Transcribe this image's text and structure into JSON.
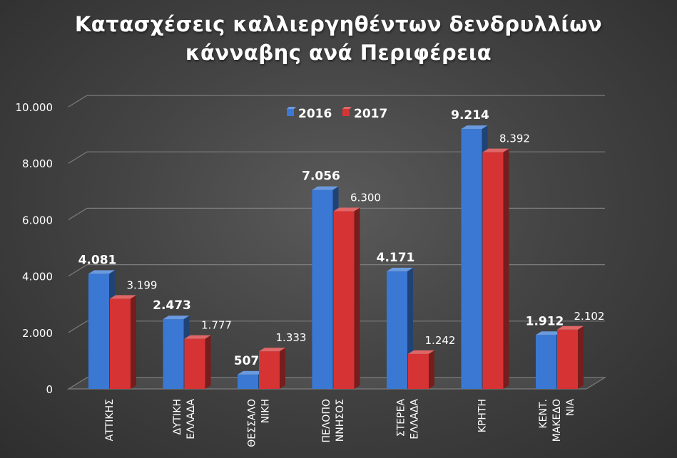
{
  "chart_data": {
    "type": "bar",
    "title": [
      "Κατασχέσεις καλλιεργηθέντων δενδρυλλίων",
      "κάνναβης ανά Περιφέρεια"
    ],
    "categories": [
      [
        "ΑΤΤΙΚΗΣ"
      ],
      [
        "ΔΥΤΙΚΗ",
        "ΕΛΛΑΔΑ"
      ],
      [
        "ΘΕΣΣΑΛΟ",
        "ΝΙΚΗ"
      ],
      [
        "ΠΕΛΟΠΟ",
        "ΝΝΗΣΟΣ"
      ],
      [
        "ΣΤΕΡΕΑ",
        "ΕΛΛΑΔΑ"
      ],
      [
        "ΚΡΗΤΗ"
      ],
      [
        "ΚΕΝΤ.",
        "ΜΑΚΕΔΟ",
        "ΝΙΑ"
      ]
    ],
    "series": [
      {
        "name": "2016",
        "color": "#3a78d4",
        "values": [
          4081,
          2473,
          507,
          7056,
          4171,
          9214,
          1912
        ],
        "labels": [
          "4.081",
          "2.473",
          "507",
          "7.056",
          "4.171",
          "9.214",
          "1.912"
        ]
      },
      {
        "name": "2017",
        "color": "#d63434",
        "values": [
          3199,
          1777,
          1333,
          6300,
          1242,
          8392,
          2102
        ],
        "labels": [
          "3.199",
          "1.777",
          "1.333",
          "6.300",
          "1.242",
          "8.392",
          "2.102"
        ]
      }
    ],
    "ylim": [
      0,
      10000
    ],
    "yticks": [
      0,
      2000,
      4000,
      6000,
      8000,
      10000
    ],
    "ytick_labels": [
      "0",
      "2.000",
      "4.000",
      "6.000",
      "8.000",
      "10.000"
    ],
    "grid": true,
    "legend_position": "top-center"
  }
}
